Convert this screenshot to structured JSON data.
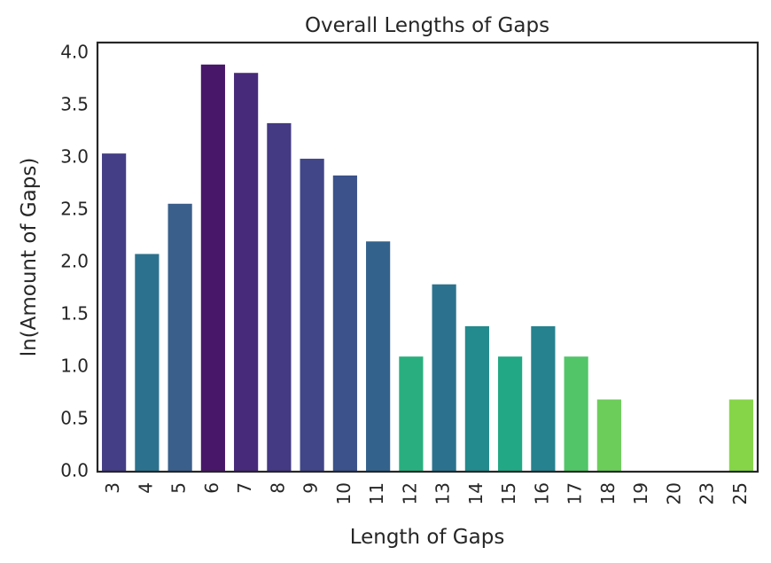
{
  "chart_data": {
    "type": "bar",
    "title": "Overall Lengths of Gaps",
    "xlabel": "Length of Gaps",
    "ylabel": "ln(Amount of Gaps)",
    "categories": [
      "3",
      "4",
      "5",
      "6",
      "7",
      "8",
      "9",
      "10",
      "11",
      "12",
      "13",
      "14",
      "15",
      "16",
      "17",
      "18",
      "19",
      "20",
      "23",
      "25"
    ],
    "values": [
      3.04,
      2.08,
      2.56,
      3.89,
      3.81,
      3.33,
      2.99,
      2.83,
      2.2,
      1.1,
      1.79,
      1.39,
      1.1,
      1.39,
      1.1,
      0.69,
      0,
      0,
      0,
      0.69
    ],
    "colors": [
      "#433e85",
      "#2c728e",
      "#3b5f8b",
      "#481769",
      "#472a7a",
      "#443983",
      "#404688",
      "#3b528b",
      "#33638d",
      "#29af7f",
      "#2c728e",
      "#238a8d",
      "#22a884",
      "#26828e",
      "#52c569",
      "#6ccd5a",
      "#46327e",
      "#3b528b",
      "#2f6c8e",
      "#86d549"
    ],
    "yticks": [
      "0.0",
      "0.5",
      "1.0",
      "1.5",
      "2.0",
      "2.5",
      "3.0",
      "3.5",
      "4.0"
    ],
    "ylim": [
      0,
      4.1
    ],
    "grid": false,
    "legend": "none"
  }
}
